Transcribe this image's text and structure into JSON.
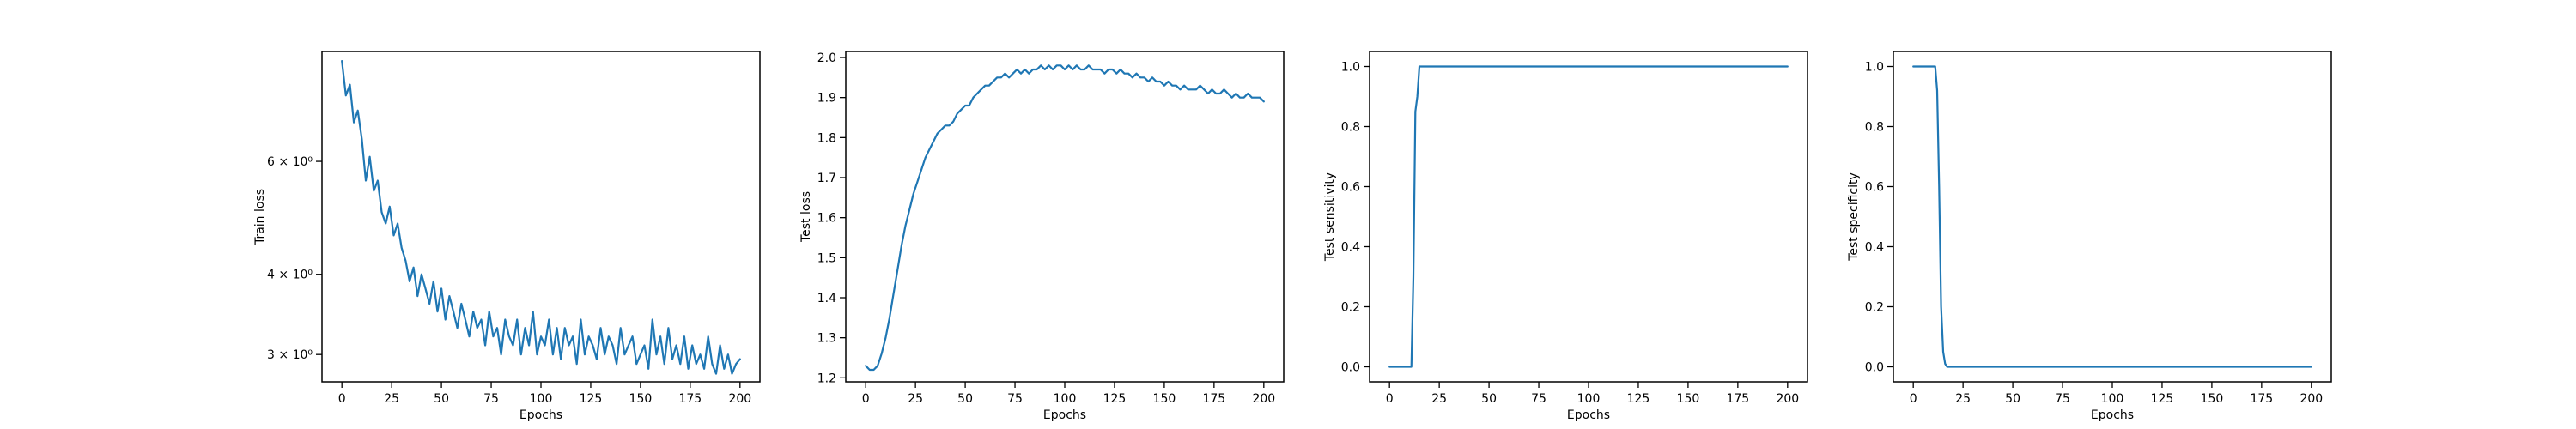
{
  "colors": {
    "series": "#1f77b4",
    "axis": "#000000",
    "background": "#ffffff"
  },
  "chart_data": [
    {
      "type": "line",
      "xlabel": "Epochs",
      "ylabel": "Train loss",
      "yscale": "log",
      "grid": false,
      "xlim": [
        -10,
        210
      ],
      "ylim": [
        2.72,
        8.9
      ],
      "xticks": [
        0,
        25,
        50,
        75,
        100,
        125,
        150,
        175,
        200
      ],
      "xtick_labels": [
        "0",
        "25",
        "50",
        "75",
        "100",
        "125",
        "150",
        "175",
        "200"
      ],
      "yticks": [
        3,
        4,
        6
      ],
      "ytick_labels": [
        "3 × 10⁰",
        "4 × 10⁰",
        "6 × 10⁰"
      ],
      "series": [
        {
          "x": [
            0,
            2,
            4,
            6,
            8,
            10,
            12,
            14,
            16,
            18,
            20,
            22,
            24,
            26,
            28,
            30,
            32,
            34,
            36,
            38,
            40,
            42,
            44,
            46,
            48,
            50,
            52,
            54,
            56,
            58,
            60,
            62,
            64,
            66,
            68,
            70,
            72,
            74,
            76,
            78,
            80,
            82,
            84,
            86,
            88,
            90,
            92,
            94,
            96,
            98,
            100,
            102,
            104,
            106,
            108,
            110,
            112,
            114,
            116,
            118,
            120,
            122,
            124,
            126,
            128,
            130,
            132,
            134,
            136,
            138,
            140,
            142,
            144,
            146,
            148,
            150,
            152,
            154,
            156,
            158,
            160,
            162,
            164,
            166,
            168,
            170,
            172,
            174,
            176,
            178,
            180,
            182,
            184,
            186,
            188,
            190,
            192,
            194,
            196,
            198,
            200
          ],
          "values": [
            8.6,
            7.6,
            7.9,
            6.9,
            7.2,
            6.5,
            5.6,
            6.1,
            5.4,
            5.6,
            5.0,
            4.8,
            5.1,
            4.6,
            4.8,
            4.4,
            4.2,
            3.9,
            4.1,
            3.7,
            4.0,
            3.8,
            3.6,
            3.9,
            3.5,
            3.8,
            3.4,
            3.7,
            3.5,
            3.3,
            3.6,
            3.4,
            3.2,
            3.5,
            3.3,
            3.4,
            3.1,
            3.5,
            3.2,
            3.3,
            3.0,
            3.4,
            3.2,
            3.1,
            3.4,
            3.0,
            3.3,
            3.1,
            3.5,
            3.0,
            3.2,
            3.1,
            3.4,
            3.0,
            3.3,
            2.95,
            3.3,
            3.1,
            3.2,
            2.9,
            3.4,
            3.0,
            3.2,
            3.1,
            2.95,
            3.3,
            3.0,
            3.2,
            3.1,
            2.9,
            3.3,
            3.0,
            3.1,
            3.2,
            2.9,
            3.0,
            3.1,
            2.85,
            3.4,
            3.0,
            3.2,
            2.9,
            3.3,
            2.95,
            3.1,
            2.9,
            3.2,
            2.85,
            3.1,
            2.9,
            3.0,
            2.85,
            3.2,
            2.9,
            2.8,
            3.1,
            2.85,
            3.0,
            2.8,
            2.9,
            2.95
          ]
        }
      ]
    },
    {
      "type": "line",
      "xlabel": "Epochs",
      "ylabel": "Test loss",
      "grid": false,
      "xlim": [
        -10,
        210
      ],
      "ylim": [
        1.19,
        2.015
      ],
      "xticks": [
        0,
        25,
        50,
        75,
        100,
        125,
        150,
        175,
        200
      ],
      "xtick_labels": [
        "0",
        "25",
        "50",
        "75",
        "100",
        "125",
        "150",
        "175",
        "200"
      ],
      "yticks": [
        1.2,
        1.3,
        1.4,
        1.5,
        1.6,
        1.7,
        1.8,
        1.9,
        2.0
      ],
      "ytick_labels": [
        "1.2",
        "1.3",
        "1.4",
        "1.5",
        "1.6",
        "1.7",
        "1.8",
        "1.9",
        "2.0"
      ],
      "series": [
        {
          "x": [
            0,
            2,
            4,
            6,
            8,
            10,
            12,
            14,
            16,
            18,
            20,
            22,
            24,
            26,
            28,
            30,
            32,
            34,
            36,
            38,
            40,
            42,
            44,
            46,
            48,
            50,
            52,
            54,
            56,
            58,
            60,
            62,
            64,
            66,
            68,
            70,
            72,
            74,
            76,
            78,
            80,
            82,
            84,
            86,
            88,
            90,
            92,
            94,
            96,
            98,
            100,
            102,
            104,
            106,
            108,
            110,
            112,
            114,
            116,
            118,
            120,
            122,
            124,
            126,
            128,
            130,
            132,
            134,
            136,
            138,
            140,
            142,
            144,
            146,
            148,
            150,
            152,
            154,
            156,
            158,
            160,
            162,
            164,
            166,
            168,
            170,
            172,
            174,
            176,
            178,
            180,
            182,
            184,
            186,
            188,
            190,
            192,
            194,
            196,
            198,
            200
          ],
          "values": [
            1.23,
            1.22,
            1.22,
            1.23,
            1.26,
            1.3,
            1.35,
            1.41,
            1.47,
            1.53,
            1.58,
            1.62,
            1.66,
            1.69,
            1.72,
            1.75,
            1.77,
            1.79,
            1.81,
            1.82,
            1.83,
            1.83,
            1.84,
            1.86,
            1.87,
            1.88,
            1.88,
            1.9,
            1.91,
            1.92,
            1.93,
            1.93,
            1.94,
            1.95,
            1.95,
            1.96,
            1.95,
            1.96,
            1.97,
            1.96,
            1.97,
            1.96,
            1.97,
            1.97,
            1.98,
            1.97,
            1.98,
            1.97,
            1.98,
            1.98,
            1.97,
            1.98,
            1.97,
            1.98,
            1.97,
            1.97,
            1.98,
            1.97,
            1.97,
            1.97,
            1.96,
            1.97,
            1.97,
            1.96,
            1.97,
            1.96,
            1.96,
            1.95,
            1.96,
            1.95,
            1.95,
            1.94,
            1.95,
            1.94,
            1.94,
            1.93,
            1.94,
            1.93,
            1.93,
            1.92,
            1.93,
            1.92,
            1.92,
            1.92,
            1.93,
            1.92,
            1.91,
            1.92,
            1.91,
            1.91,
            1.92,
            1.91,
            1.9,
            1.91,
            1.9,
            1.9,
            1.91,
            1.9,
            1.9,
            1.9,
            1.89
          ]
        }
      ]
    },
    {
      "type": "line",
      "xlabel": "Epochs",
      "ylabel": "Test sensitivity",
      "grid": false,
      "xlim": [
        -10,
        210
      ],
      "ylim": [
        -0.05,
        1.05
      ],
      "xticks": [
        0,
        25,
        50,
        75,
        100,
        125,
        150,
        175,
        200
      ],
      "xtick_labels": [
        "0",
        "25",
        "50",
        "75",
        "100",
        "125",
        "150",
        "175",
        "200"
      ],
      "yticks": [
        0.0,
        0.2,
        0.4,
        0.6,
        0.8,
        1.0
      ],
      "ytick_labels": [
        "0.0",
        "0.2",
        "0.4",
        "0.6",
        "0.8",
        "1.0"
      ],
      "series": [
        {
          "x": [
            0,
            11,
            12,
            13,
            14,
            15,
            16,
            200
          ],
          "values": [
            0.0,
            0.0,
            0.3,
            0.85,
            0.9,
            1.0,
            1.0,
            1.0
          ]
        }
      ]
    },
    {
      "type": "line",
      "xlabel": "Epochs",
      "ylabel": "Test specificity",
      "grid": false,
      "xlim": [
        -10,
        210
      ],
      "ylim": [
        -0.05,
        1.05
      ],
      "xticks": [
        0,
        25,
        50,
        75,
        100,
        125,
        150,
        175,
        200
      ],
      "xtick_labels": [
        "0",
        "25",
        "50",
        "75",
        "100",
        "125",
        "150",
        "175",
        "200"
      ],
      "yticks": [
        0.0,
        0.2,
        0.4,
        0.6,
        0.8,
        1.0
      ],
      "ytick_labels": [
        "0.0",
        "0.2",
        "0.4",
        "0.6",
        "0.8",
        "1.0"
      ],
      "series": [
        {
          "x": [
            0,
            11,
            12,
            13,
            14,
            15,
            16,
            17,
            200
          ],
          "values": [
            1.0,
            1.0,
            0.92,
            0.6,
            0.2,
            0.05,
            0.01,
            0.0,
            0.0
          ]
        }
      ]
    }
  ]
}
